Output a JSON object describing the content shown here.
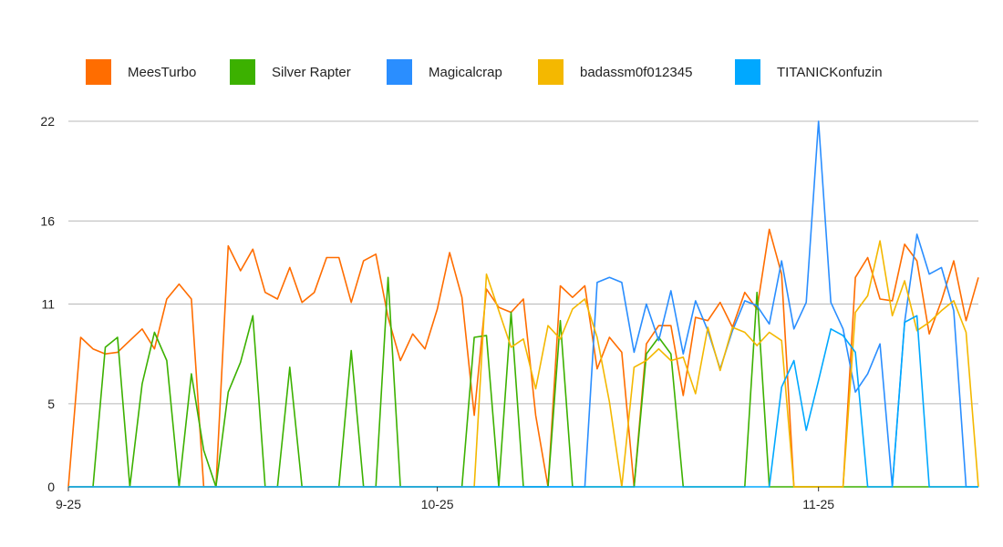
{
  "chart_data": {
    "type": "line",
    "title": "",
    "xlabel": "",
    "ylabel": "",
    "x_ticks": [
      "9-25",
      "10-25",
      "11-25"
    ],
    "y_ticks": [
      0,
      5,
      11,
      16,
      22
    ],
    "ylim": [
      0,
      22
    ],
    "grid": true,
    "legend_position": "top",
    "series": [
      {
        "name": "MeesTurbo",
        "color": "#ff6d00",
        "values": [
          0,
          9,
          8.3,
          8,
          8.1,
          8.8,
          9.5,
          8.3,
          11.3,
          12.2,
          11.3,
          0,
          0,
          14.5,
          13,
          14.3,
          11.7,
          11.3,
          13.2,
          11.1,
          11.7,
          13.8,
          13.8,
          11.1,
          13.6,
          14,
          10.2,
          7.6,
          9.2,
          8.3,
          10.7,
          14.1,
          11.4,
          4.3,
          11.9,
          10.8,
          10.5,
          11.3,
          4.3,
          0,
          12.1,
          11.4,
          12.1,
          7.1,
          9,
          8.1,
          0,
          8.6,
          9.7,
          9.7,
          5.5,
          10.2,
          10,
          11.1,
          9.6,
          11.7,
          10.7,
          15.5,
          12.8,
          0,
          0,
          0,
          0,
          0,
          12.6,
          13.8,
          11.3,
          11.2,
          14.6,
          13.6,
          9.2,
          11.2,
          13.6,
          10,
          12.6
        ]
      },
      {
        "name": "Silver Rapter",
        "color": "#3cb100",
        "values": [
          0,
          0,
          0,
          8.4,
          9,
          0,
          6.2,
          9.3,
          7.6,
          0,
          6.8,
          2.2,
          0,
          5.7,
          7.5,
          10.3,
          0,
          0,
          7.2,
          0,
          0,
          0,
          0,
          8.2,
          0,
          0,
          12.6,
          0,
          0,
          0,
          0,
          0,
          0,
          9,
          9.1,
          0,
          10.5,
          0,
          0,
          0,
          10,
          0,
          0,
          0,
          0,
          0,
          0,
          8,
          9,
          8,
          0,
          0,
          0,
          0,
          0,
          0,
          11.7,
          0,
          0,
          0,
          0,
          0,
          0,
          0,
          0,
          0,
          0,
          0,
          0,
          0,
          0,
          0,
          0,
          0,
          0
        ]
      },
      {
        "name": "Magicalcrap",
        "color": "#2a8eff",
        "values": [
          0,
          0,
          0,
          0,
          0,
          0,
          0,
          0,
          0,
          0,
          0,
          0,
          0,
          0,
          0,
          0,
          0,
          0,
          0,
          0,
          0,
          0,
          0,
          0,
          0,
          0,
          0,
          0,
          0,
          0,
          0,
          0,
          0,
          0,
          0,
          0,
          0,
          0,
          0,
          0,
          0,
          0,
          0,
          12.3,
          12.6,
          12.3,
          8.1,
          11,
          8.8,
          11.8,
          8,
          11.2,
          9.4,
          7.1,
          9.4,
          11.2,
          10.9,
          9.8,
          13.6,
          9.5,
          11.1,
          22,
          11.1,
          9.5,
          5.7,
          6.8,
          8.6,
          0,
          9.9,
          15.2,
          12.8,
          13.2,
          10.6,
          0,
          0
        ]
      },
      {
        "name": "badassm0f012345",
        "color": "#f4b800",
        "values": [
          0,
          0,
          0,
          0,
          0,
          0,
          0,
          0,
          0,
          0,
          0,
          0,
          0,
          0,
          0,
          0,
          0,
          0,
          0,
          0,
          0,
          0,
          0,
          0,
          0,
          0,
          0,
          0,
          0,
          0,
          0,
          0,
          0,
          0,
          12.8,
          10.6,
          8.4,
          8.9,
          5.9,
          9.7,
          8.9,
          10.7,
          11.3,
          9,
          5.1,
          0,
          7.2,
          7.6,
          8.3,
          7.6,
          7.8,
          5.6,
          9.6,
          7,
          9.6,
          9.3,
          8.5,
          9.3,
          8.8,
          0,
          0,
          0,
          0,
          0,
          10.5,
          11.5,
          14.8,
          10.3,
          12.4,
          9.4,
          9.9,
          10.6,
          11.2,
          9.3,
          0
        ]
      },
      {
        "name": "TITANICKonfuzin",
        "color": "#00a8ff",
        "values": [
          0,
          0,
          0,
          0,
          0,
          0,
          0,
          0,
          0,
          0,
          0,
          0,
          0,
          0,
          0,
          0,
          0,
          0,
          0,
          0,
          0,
          0,
          0,
          0,
          0,
          0,
          0,
          0,
          0,
          0,
          0,
          0,
          0,
          0,
          0,
          0,
          0,
          0,
          0,
          0,
          0,
          0,
          0,
          0,
          0,
          0,
          0,
          0,
          0,
          0,
          0,
          0,
          0,
          0,
          0,
          0,
          0,
          0,
          6,
          7.6,
          3.4,
          6.4,
          9.5,
          9.1,
          8.1,
          0,
          0,
          0,
          9.9,
          10.3,
          0,
          0,
          0,
          0,
          0
        ]
      }
    ]
  }
}
